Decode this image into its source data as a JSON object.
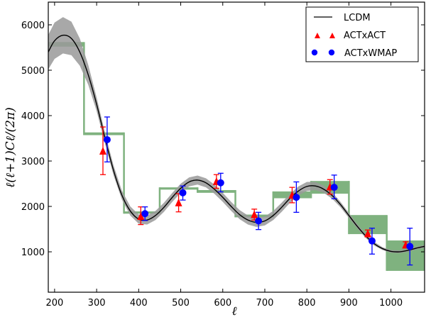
{
  "chart_data": {
    "type": "scatter",
    "title": "",
    "xlabel": "ℓ",
    "ylabel": "ℓ(ℓ+1)Cℓ/(2π)",
    "xlim": [
      185,
      1080
    ],
    "ylim": [
      110,
      6500
    ],
    "xticks": [
      200,
      300,
      400,
      500,
      600,
      700,
      800,
      900,
      1000
    ],
    "yticks": [
      1000,
      2000,
      3000,
      4000,
      5000,
      6000
    ],
    "legend": {
      "position": "top-right",
      "entries": [
        "LCDM",
        "ACTxACT",
        "ACTxWMAP"
      ]
    },
    "colors": {
      "lcdm": "#000000",
      "band": "#999999",
      "act": "#ff0000",
      "wmap": "#0000ff",
      "green": "#7fb27f"
    },
    "lcdm": {
      "l": [
        185,
        200,
        220,
        240,
        260,
        280,
        300,
        320,
        340,
        360,
        380,
        400,
        420,
        440,
        460,
        480,
        500,
        520,
        540,
        560,
        580,
        600,
        620,
        640,
        660,
        680,
        700,
        720,
        740,
        760,
        780,
        800,
        820,
        840,
        860,
        880,
        900,
        920,
        940,
        960,
        980,
        1000,
        1020,
        1040,
        1060,
        1080
      ],
      "value": [
        5400,
        5650,
        5770,
        5700,
        5400,
        4900,
        4250,
        3500,
        2800,
        2250,
        1900,
        1720,
        1700,
        1800,
        1980,
        2200,
        2400,
        2540,
        2580,
        2520,
        2380,
        2200,
        2000,
        1820,
        1700,
        1650,
        1680,
        1800,
        1980,
        2180,
        2340,
        2440,
        2450,
        2380,
        2240,
        2040,
        1800,
        1560,
        1350,
        1180,
        1070,
        1010,
        1000,
        1030,
        1080,
        1120
      ],
      "band_halfwidth": [
        380,
        400,
        400,
        370,
        300,
        220,
        150,
        120,
        110,
        100,
        100,
        100,
        100,
        100,
        100,
        100,
        100,
        100,
        100,
        100,
        100,
        100,
        100,
        100,
        100,
        100,
        100,
        100,
        100,
        100,
        100,
        100,
        90,
        80,
        70,
        60,
        55,
        50,
        45,
        40,
        0,
        0,
        0,
        0,
        0,
        0
      ]
    },
    "binned_bands": [
      {
        "l0": 185,
        "l1": 270,
        "lo": 5520,
        "hi": 5620
      },
      {
        "l0": 270,
        "l1": 365,
        "lo": 3570,
        "hi": 3630
      },
      {
        "l0": 365,
        "l1": 450,
        "lo": 1840,
        "hi": 1890
      },
      {
        "l0": 450,
        "l1": 540,
        "lo": 2370,
        "hi": 2420
      },
      {
        "l0": 540,
        "l1": 630,
        "lo": 2300,
        "hi": 2360
      },
      {
        "l0": 630,
        "l1": 720,
        "lo": 1760,
        "hi": 1820
      },
      {
        "l0": 720,
        "l1": 810,
        "lo": 2180,
        "hi": 2330
      },
      {
        "l0": 810,
        "l1": 900,
        "lo": 2280,
        "hi": 2560
      },
      {
        "l0": 900,
        "l1": 990,
        "lo": 1390,
        "hi": 1810
      },
      {
        "l0": 990,
        "l1": 1080,
        "lo": 580,
        "hi": 1250
      }
    ],
    "series": [
      {
        "name": "ACTxACT",
        "marker": "triangle",
        "l": [
          315,
          405,
          495,
          585,
          675,
          765,
          855,
          945,
          1035
        ],
        "value": [
          3220,
          1780,
          2080,
          2550,
          1820,
          2250,
          2430,
          1400,
          1150
        ],
        "err_low": [
          2700,
          1600,
          1880,
          2400,
          1700,
          2080,
          2270,
          1330,
          1100
        ],
        "err_high": [
          3750,
          1990,
          2280,
          2700,
          1940,
          2420,
          2590,
          1480,
          1220
        ]
      },
      {
        "name": "ACTxWMAP",
        "marker": "circle",
        "l": [
          325,
          415,
          505,
          595,
          685,
          775,
          865,
          955,
          1045
        ],
        "value": [
          3470,
          1840,
          2300,
          2520,
          1680,
          2200,
          2420,
          1240,
          1120
        ],
        "err_low": [
          2980,
          1690,
          2140,
          2320,
          1490,
          1870,
          2170,
          950,
          710
        ],
        "err_high": [
          3970,
          1990,
          2450,
          2730,
          1870,
          2540,
          2690,
          1520,
          1520
        ]
      }
    ]
  }
}
